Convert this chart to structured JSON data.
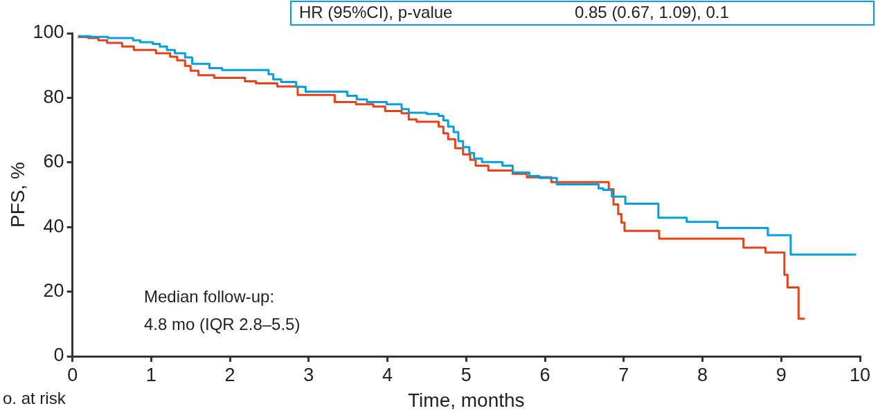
{
  "chart_data": {
    "type": "step",
    "xlabel": "Time, months",
    "ylabel": "PFS, %",
    "xlim": [
      0,
      10
    ],
    "ylim": [
      0,
      100
    ],
    "xticks": [
      0,
      1,
      2,
      3,
      4,
      5,
      6,
      7,
      8,
      9,
      10
    ],
    "yticks": [
      0,
      20,
      40,
      60,
      80,
      100
    ],
    "grid": false,
    "legend": false,
    "annotations": [
      "HR (95%CI), p-value",
      "0.85 (0.67, 1.09), 0.1",
      "Median follow-up:",
      "4.8 mo (IQR 2.8–5.5)",
      "o. at risk"
    ],
    "series": [
      {
        "color": "#00a0e0",
        "x": [
          0.07,
          0.23,
          0.45,
          0.77,
          0.86,
          1.02,
          1.11,
          1.2,
          1.3,
          1.43,
          1.52,
          1.74,
          1.9,
          2.49,
          2.55,
          2.65,
          2.84,
          2.96,
          3.49,
          3.61,
          3.74,
          3.99,
          4.18,
          4.27,
          4.5,
          4.65,
          4.71,
          4.77,
          4.84,
          4.9,
          4.96,
          5.04,
          5.1,
          5.2,
          5.46,
          5.59,
          5.8,
          5.93,
          6.15,
          6.68,
          6.74,
          6.85,
          7.02,
          7.44,
          7.8,
          8.19,
          8.83,
          9.12,
          9.95
        ],
        "values": [
          99.1,
          98.9,
          98.5,
          97.8,
          97.2,
          96.7,
          95.9,
          94.8,
          93.8,
          92.5,
          90.5,
          89.2,
          88.6,
          87.3,
          85.7,
          84.9,
          83.4,
          81.9,
          80.6,
          79.5,
          78.7,
          78,
          76.5,
          75.4,
          75,
          74.4,
          73,
          71.1,
          69.4,
          66.6,
          64.7,
          62.9,
          61.2,
          60.1,
          59,
          56.9,
          55.8,
          55.2,
          53.2,
          52,
          51.5,
          49.4,
          47.2,
          42.9,
          41.6,
          39.7,
          37.5,
          31.5,
          31.5
        ]
      },
      {
        "color": "#e84017",
        "x": [
          0.07,
          0.2,
          0.33,
          0.44,
          0.63,
          0.78,
          1.06,
          1.24,
          1.33,
          1.43,
          1.5,
          1.6,
          1.8,
          2.19,
          2.33,
          2.6,
          2.86,
          3.33,
          3.6,
          3.82,
          3.97,
          4.18,
          4.27,
          4.37,
          4.65,
          4.71,
          4.77,
          4.86,
          4.96,
          5.05,
          5.12,
          5.28,
          5.59,
          5.77,
          6.08,
          6.81,
          6.87,
          6.93,
          6.97,
          7.01,
          7.45,
          8.52,
          8.8,
          9.04,
          9.08,
          9.22,
          9.3
        ],
        "values": [
          98.8,
          98.5,
          97.8,
          97,
          95.9,
          94.8,
          93.8,
          92.7,
          91.6,
          89.9,
          88.4,
          87,
          86.2,
          85.1,
          84.5,
          83.5,
          80.9,
          78.7,
          78,
          77.3,
          75.9,
          75.2,
          73.3,
          72.6,
          71.1,
          69,
          67.2,
          64.4,
          62.5,
          60.8,
          59,
          57.5,
          56.5,
          55.4,
          53.9,
          51.7,
          47,
          44,
          41.4,
          38.8,
          36.4,
          33.6,
          32.1,
          25.2,
          21.3,
          11.6,
          11.6
        ]
      }
    ]
  }
}
